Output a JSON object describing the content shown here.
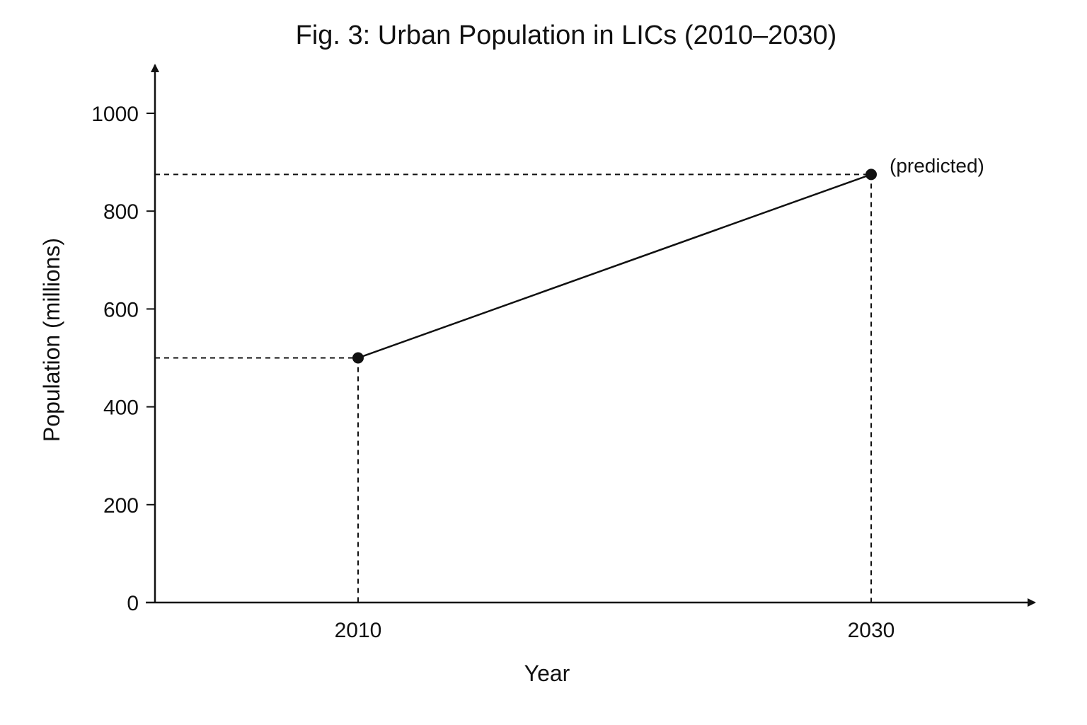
{
  "chart_data": {
    "type": "line",
    "title": "Fig. 3: Urban Population in LICs (2010–2030)",
    "xlabel": "Year",
    "ylabel": "Population (millions)",
    "x_ticks": [
      "2010",
      "2030"
    ],
    "y_ticks": [
      "0",
      "200",
      "400",
      "600",
      "800",
      "1000"
    ],
    "ylim": [
      0,
      1000
    ],
    "grid": false,
    "x": [
      2010,
      2030
    ],
    "series": [
      {
        "values": [
          500,
          875
        ],
        "annotations": [
          "",
          "(predicted)"
        ]
      }
    ],
    "reference_lines": "dashed"
  },
  "colors": {
    "ink": "#111111",
    "background": "#ffffff"
  }
}
